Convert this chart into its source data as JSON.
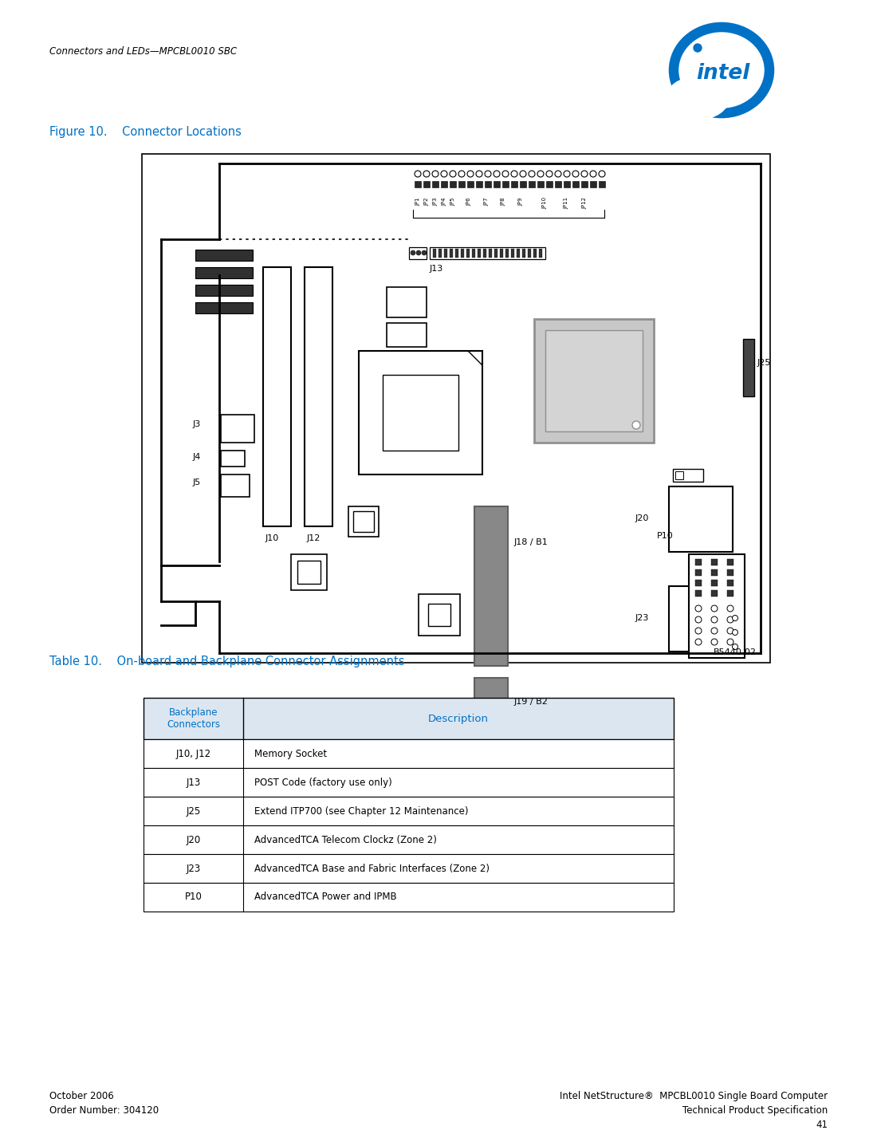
{
  "page_header": "Connectors and LEDs—MPCBL0010 SBC",
  "figure_title": "Figure 10.    Connector Locations",
  "table_title": "Table 10.    On-board and Backplane Connector Assignments",
  "table_header_col1": "Backplane\nConnectors",
  "table_header_col2": "Description",
  "table_rows": [
    [
      "J10, J12",
      "Memory Socket"
    ],
    [
      "J13",
      "POST Code (factory use only)"
    ],
    [
      "J25",
      "Extend ITP700 (see Chapter 12 Maintenance)"
    ],
    [
      "J20",
      "AdvancedTCA Telecom Clockz (Zone 2)"
    ],
    [
      "J23",
      "AdvancedTCA Base and Fabric Interfaces (Zone 2)"
    ],
    [
      "P10",
      "AdvancedTCA Power and IPMB"
    ]
  ],
  "footer_left_line1": "October 2006",
  "footer_left_line2": "Order Number: 304120",
  "footer_right_line1": "Intel NetStructure®  MPCBL0010 Single Board Computer",
  "footer_right_line2": "Technical Product Specification",
  "footer_page": "41",
  "intel_blue": "#0071c5",
  "black": "#000000",
  "gray_mid": "#909090",
  "gray_dark": "#606060",
  "gray_light": "#c8c8c8",
  "gray_connector": "#888888",
  "figure_note": "B5440-02"
}
